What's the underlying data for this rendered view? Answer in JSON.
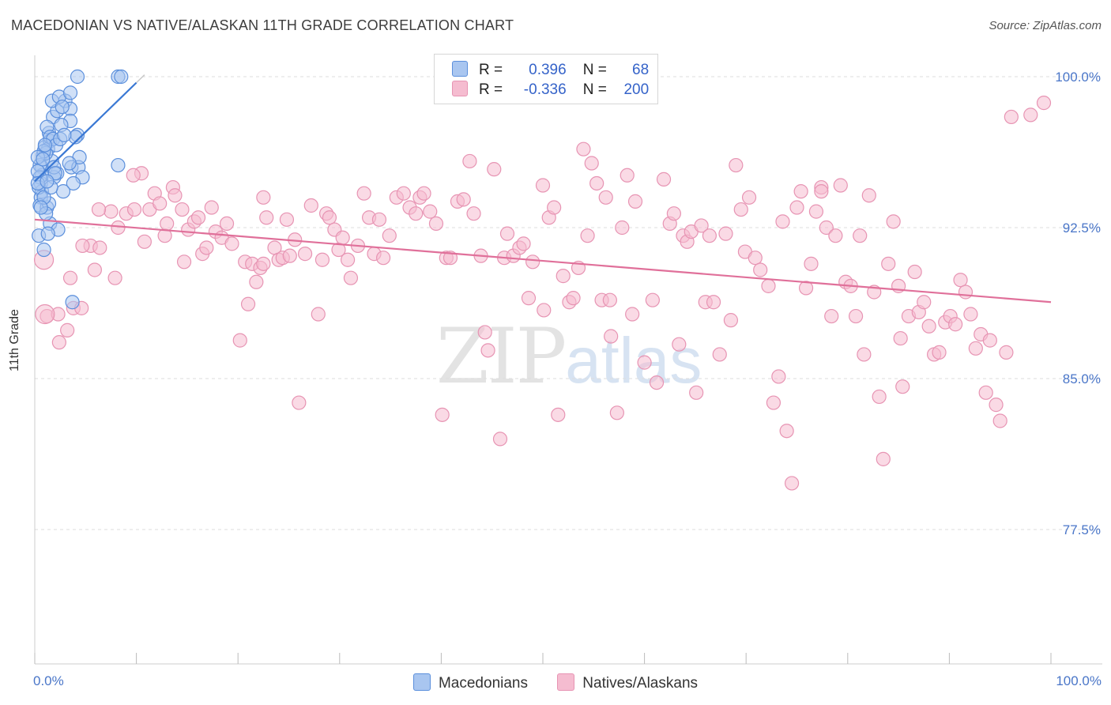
{
  "title": "MACEDONIAN VS NATIVE/ALASKAN 11TH GRADE CORRELATION CHART",
  "source": "Source: ZipAtlas.com",
  "watermark": {
    "zip": "ZIP",
    "atlas": "atlas"
  },
  "colors": {
    "blue": "#3a78d4",
    "blue_fill": "#a9c6f0",
    "blue_stroke": "#5b8fdc",
    "pink": "#e0709a",
    "pink_fill": "#f5bcd0",
    "pink_stroke": "#e794b3",
    "tick_text": "#4a76c8",
    "grid": "#dddddd"
  },
  "legend": {
    "rows": [
      {
        "r_label": "R =",
        "r_value": "0.396",
        "n_label": "N =",
        "n_value": "68"
      },
      {
        "r_label": "R =",
        "r_value": "-0.336",
        "n_label": "N =",
        "n_value": "200"
      }
    ]
  },
  "bottom_legend": [
    "Macedonians",
    "Natives/Alaskans"
  ],
  "chart_data": {
    "type": "scatter",
    "title": "MACEDONIAN VS NATIVE/ALASKAN 11TH GRADE CORRELATION CHART",
    "xlabel": "",
    "ylabel": "11th Grade",
    "xlim": [
      0,
      100
    ],
    "ylim": [
      71,
      101.5
    ],
    "x_tick_labels": [
      "0.0%",
      "100.0%"
    ],
    "y_ticks": [
      77.5,
      85.0,
      92.5,
      100.0
    ],
    "y_tick_labels": [
      "77.5%",
      "85.0%",
      "92.5%",
      "100.0%"
    ],
    "grid": true,
    "legend_position": "top-center",
    "series": [
      {
        "name": "Macedonians",
        "r": 0.396,
        "n": 68,
        "trend": {
          "x": [
            0,
            10
          ],
          "y": [
            94.8,
            99.7
          ]
        },
        "points": [
          [
            1,
            96.5
          ],
          [
            1.4,
            97.2
          ],
          [
            1.8,
            98.0
          ],
          [
            2.2,
            98.3
          ],
          [
            3,
            98.8
          ],
          [
            3.5,
            98.4
          ],
          [
            3.5,
            97.8
          ],
          [
            2.6,
            97.6
          ],
          [
            1.5,
            96.8
          ],
          [
            0.8,
            96.1
          ],
          [
            0.7,
            95.5
          ],
          [
            0.7,
            95.1
          ],
          [
            0.6,
            94.7
          ],
          [
            0.7,
            94.3
          ],
          [
            0.6,
            94.0
          ],
          [
            0.5,
            93.6
          ],
          [
            1.2,
            93.5
          ],
          [
            1.4,
            93.7
          ],
          [
            1.5,
            92.7
          ],
          [
            2.3,
            92.4
          ],
          [
            0.4,
            92.1
          ],
          [
            0.9,
            91.4
          ],
          [
            1.3,
            92.2
          ],
          [
            4.2,
            97.1
          ],
          [
            4.0,
            97.0
          ],
          [
            3.6,
            95.5
          ],
          [
            4.3,
            95.5
          ],
          [
            4.7,
            95.0
          ],
          [
            4.4,
            96.0
          ],
          [
            3.8,
            94.7
          ],
          [
            2.8,
            94.3
          ],
          [
            2.2,
            95.2
          ],
          [
            1.9,
            95.0
          ],
          [
            1.7,
            95.8
          ],
          [
            1.3,
            96.4
          ],
          [
            1.1,
            96.2
          ],
          [
            0.9,
            96.3
          ],
          [
            1.2,
            97.5
          ],
          [
            1.5,
            97.0
          ],
          [
            1.8,
            96.9
          ],
          [
            2.1,
            96.6
          ],
          [
            0.5,
            95.6
          ],
          [
            0.5,
            95.0
          ],
          [
            0.4,
            94.5
          ],
          [
            0.9,
            94.0
          ],
          [
            1.1,
            93.2
          ],
          [
            0.6,
            93.5
          ],
          [
            0.3,
            95.3
          ],
          [
            0.3,
            96.0
          ],
          [
            0.3,
            94.7
          ],
          [
            1.6,
            94.5
          ],
          [
            1.9,
            95.5
          ],
          [
            2.5,
            96.9
          ],
          [
            2.9,
            97.1
          ],
          [
            3.4,
            95.7
          ],
          [
            4.2,
            100.0
          ],
          [
            8.2,
            100.0
          ],
          [
            8.5,
            100.0
          ],
          [
            8.2,
            95.6
          ],
          [
            3.7,
            88.8
          ],
          [
            2.0,
            95.2
          ],
          [
            1.7,
            98.8
          ],
          [
            2.4,
            99.0
          ],
          [
            3.5,
            99.2
          ],
          [
            2.7,
            98.5
          ],
          [
            1.0,
            96.6
          ],
          [
            0.8,
            95.9
          ],
          [
            1.2,
            94.8
          ]
        ]
      },
      {
        "name": "Natives/Alaskans",
        "r": -0.336,
        "n": 200,
        "trend": {
          "x": [
            0,
            100
          ],
          "y": [
            92.9,
            88.8
          ]
        },
        "points": [
          [
            1.2,
            88.1
          ],
          [
            2.3,
            88.2
          ],
          [
            3.2,
            87.4
          ],
          [
            2.4,
            86.8
          ],
          [
            3.8,
            88.5
          ],
          [
            3.5,
            90.0
          ],
          [
            5.5,
            91.6
          ],
          [
            4.7,
            91.6
          ],
          [
            6.4,
            91.5
          ],
          [
            5.9,
            90.4
          ],
          [
            7.9,
            90.0
          ],
          [
            7.5,
            93.3
          ],
          [
            6.3,
            93.4
          ],
          [
            8.2,
            92.5
          ],
          [
            9.0,
            93.2
          ],
          [
            9.8,
            93.4
          ],
          [
            10.5,
            95.2
          ],
          [
            9.7,
            95.1
          ],
          [
            10.8,
            91.8
          ],
          [
            11.3,
            93.4
          ],
          [
            11.8,
            94.2
          ],
          [
            12.3,
            93.7
          ],
          [
            12.8,
            92.1
          ],
          [
            13.0,
            92.7
          ],
          [
            13.6,
            94.5
          ],
          [
            14.5,
            93.4
          ],
          [
            14.7,
            90.8
          ],
          [
            15.1,
            92.4
          ],
          [
            15.7,
            92.8
          ],
          [
            16.1,
            93.0
          ],
          [
            16.5,
            91.2
          ],
          [
            16.9,
            91.5
          ],
          [
            17.4,
            93.5
          ],
          [
            17.8,
            92.3
          ],
          [
            18.4,
            92.0
          ],
          [
            18.9,
            92.7
          ],
          [
            19.4,
            91.7
          ],
          [
            20.2,
            86.9
          ],
          [
            20.7,
            90.8
          ],
          [
            21.0,
            88.7
          ],
          [
            21.4,
            90.7
          ],
          [
            21.8,
            89.8
          ],
          [
            22.2,
            90.5
          ],
          [
            22.5,
            94.0
          ],
          [
            22.8,
            93.0
          ],
          [
            23.6,
            91.5
          ],
          [
            24.0,
            90.9
          ],
          [
            24.4,
            91.0
          ],
          [
            24.8,
            92.9
          ],
          [
            25.1,
            91.1
          ],
          [
            25.6,
            91.9
          ],
          [
            26.0,
            83.8
          ],
          [
            26.6,
            91.2
          ],
          [
            27.2,
            93.6
          ],
          [
            27.9,
            88.2
          ],
          [
            28.3,
            90.9
          ],
          [
            28.7,
            93.2
          ],
          [
            29.0,
            93.0
          ],
          [
            29.5,
            92.4
          ],
          [
            29.9,
            91.4
          ],
          [
            30.3,
            92.0
          ],
          [
            30.8,
            90.9
          ],
          [
            31.1,
            90.0
          ],
          [
            31.8,
            91.6
          ],
          [
            32.4,
            94.2
          ],
          [
            32.9,
            93.0
          ],
          [
            33.4,
            91.2
          ],
          [
            33.9,
            92.9
          ],
          [
            34.3,
            91.0
          ],
          [
            34.9,
            92.1
          ],
          [
            35.6,
            94.0
          ],
          [
            36.3,
            94.2
          ],
          [
            36.9,
            93.5
          ],
          [
            37.5,
            93.2
          ],
          [
            37.9,
            94.0
          ],
          [
            38.3,
            94.2
          ],
          [
            38.9,
            93.3
          ],
          [
            39.5,
            92.7
          ],
          [
            40.1,
            83.2
          ],
          [
            40.5,
            91.0
          ],
          [
            40.9,
            91.0
          ],
          [
            41.6,
            93.8
          ],
          [
            42.2,
            93.9
          ],
          [
            42.8,
            95.8
          ],
          [
            43.2,
            93.2
          ],
          [
            43.9,
            91.1
          ],
          [
            44.3,
            87.3
          ],
          [
            44.6,
            86.4
          ],
          [
            45.2,
            95.4
          ],
          [
            45.8,
            82.0
          ],
          [
            46.2,
            91.0
          ],
          [
            46.5,
            92.2
          ],
          [
            47.1,
            91.1
          ],
          [
            47.7,
            91.5
          ],
          [
            48.1,
            91.7
          ],
          [
            48.6,
            89.0
          ],
          [
            49.0,
            90.8
          ],
          [
            50.0,
            94.6
          ],
          [
            50.6,
            93.0
          ],
          [
            51.1,
            93.5
          ],
          [
            51.5,
            83.2
          ],
          [
            52.0,
            90.1
          ],
          [
            52.6,
            88.8
          ],
          [
            53.0,
            89.0
          ],
          [
            53.5,
            90.5
          ],
          [
            54.0,
            96.4
          ],
          [
            54.4,
            92.1
          ],
          [
            54.8,
            95.7
          ],
          [
            55.3,
            94.7
          ],
          [
            55.8,
            88.9
          ],
          [
            56.2,
            94.0
          ],
          [
            56.6,
            88.9
          ],
          [
            57.3,
            83.3
          ],
          [
            57.8,
            92.5
          ],
          [
            58.3,
            95.1
          ],
          [
            58.8,
            88.2
          ],
          [
            59.1,
            93.8
          ],
          [
            60.0,
            85.8
          ],
          [
            60.8,
            88.9
          ],
          [
            61.2,
            84.8
          ],
          [
            61.9,
            94.9
          ],
          [
            62.5,
            92.7
          ],
          [
            62.9,
            93.2
          ],
          [
            63.4,
            86.7
          ],
          [
            63.8,
            92.1
          ],
          [
            64.2,
            91.8
          ],
          [
            64.6,
            92.3
          ],
          [
            65.1,
            84.3
          ],
          [
            65.6,
            92.6
          ],
          [
            66.0,
            88.8
          ],
          [
            66.4,
            92.1
          ],
          [
            66.8,
            88.8
          ],
          [
            67.4,
            86.2
          ],
          [
            68.0,
            92.2
          ],
          [
            68.5,
            87.9
          ],
          [
            69.0,
            95.6
          ],
          [
            69.5,
            93.4
          ],
          [
            69.9,
            91.3
          ],
          [
            70.3,
            94.0
          ],
          [
            70.9,
            91.0
          ],
          [
            71.4,
            90.4
          ],
          [
            72.2,
            89.6
          ],
          [
            72.7,
            83.8
          ],
          [
            73.2,
            85.1
          ],
          [
            73.6,
            92.8
          ],
          [
            74.0,
            82.4
          ],
          [
            74.5,
            79.8
          ],
          [
            75.0,
            93.5
          ],
          [
            75.4,
            94.3
          ],
          [
            75.9,
            89.5
          ],
          [
            76.4,
            90.7
          ],
          [
            76.9,
            93.3
          ],
          [
            77.4,
            94.5
          ],
          [
            77.9,
            92.5
          ],
          [
            78.4,
            88.1
          ],
          [
            78.8,
            92.1
          ],
          [
            79.3,
            94.6
          ],
          [
            79.8,
            89.8
          ],
          [
            80.3,
            89.6
          ],
          [
            80.8,
            88.1
          ],
          [
            81.2,
            92.1
          ],
          [
            81.6,
            86.2
          ],
          [
            82.1,
            94.1
          ],
          [
            82.6,
            89.3
          ],
          [
            83.1,
            84.1
          ],
          [
            83.5,
            81.0
          ],
          [
            84.0,
            90.7
          ],
          [
            84.5,
            92.8
          ],
          [
            85.0,
            89.6
          ],
          [
            85.4,
            84.6
          ],
          [
            86.0,
            88.1
          ],
          [
            86.6,
            90.3
          ],
          [
            87.0,
            88.3
          ],
          [
            87.5,
            88.8
          ],
          [
            88.0,
            87.6
          ],
          [
            88.5,
            86.2
          ],
          [
            89.0,
            86.3
          ],
          [
            89.6,
            87.8
          ],
          [
            90.1,
            88.1
          ],
          [
            90.6,
            87.7
          ],
          [
            91.1,
            89.9
          ],
          [
            91.6,
            89.3
          ],
          [
            92.1,
            88.2
          ],
          [
            92.6,
            86.5
          ],
          [
            93.1,
            87.2
          ],
          [
            93.6,
            84.3
          ],
          [
            94.0,
            86.9
          ],
          [
            94.6,
            83.7
          ],
          [
            95.0,
            82.9
          ],
          [
            95.6,
            86.3
          ],
          [
            96.1,
            98.0
          ],
          [
            98.0,
            98.1
          ],
          [
            99.3,
            98.7
          ],
          [
            77.4,
            94.3
          ],
          [
            85.2,
            87.0
          ],
          [
            13.8,
            94.1
          ],
          [
            4.6,
            88.5
          ],
          [
            56.7,
            87.1
          ],
          [
            22.5,
            90.7
          ],
          [
            50.1,
            88.4
          ]
        ]
      }
    ]
  }
}
